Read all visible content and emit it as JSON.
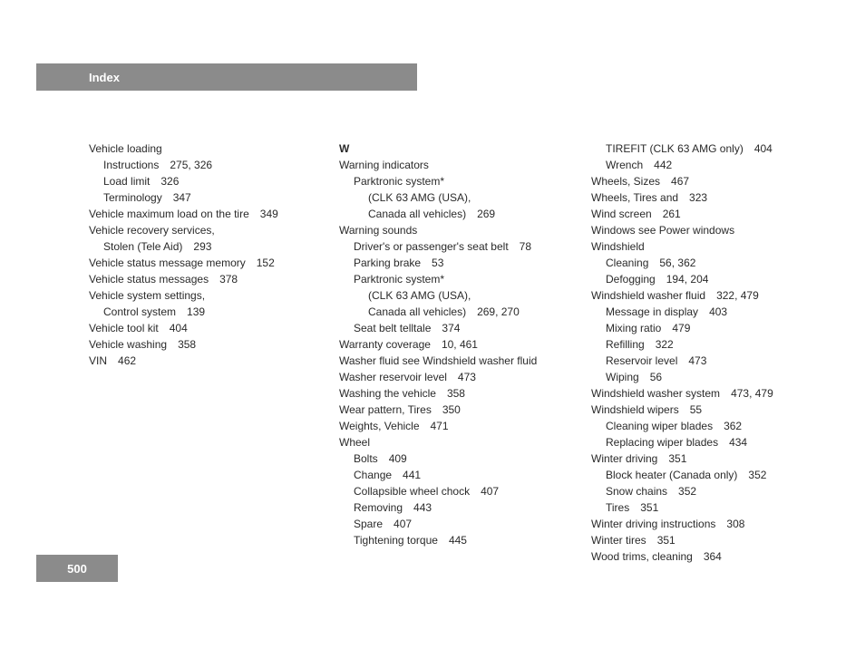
{
  "header": {
    "title": "Index"
  },
  "footer": {
    "page": "500"
  },
  "col1": [
    {
      "t": "Vehicle loading",
      "p": "",
      "ind": 0
    },
    {
      "t": "Instructions",
      "p": "275, 326",
      "ind": 1
    },
    {
      "t": "Load limit",
      "p": "326",
      "ind": 1
    },
    {
      "t": "Terminology",
      "p": "347",
      "ind": 1
    },
    {
      "t": "Vehicle maximum load on the tire",
      "p": "349",
      "ind": 0
    },
    {
      "t": "Vehicle recovery services,",
      "p": "",
      "ind": 0
    },
    {
      "t": "Stolen (Tele Aid)",
      "p": "293",
      "ind": 1
    },
    {
      "t": "Vehicle status message memory",
      "p": "152",
      "ind": 0
    },
    {
      "t": "Vehicle status messages",
      "p": "378",
      "ind": 0
    },
    {
      "t": "Vehicle system settings,",
      "p": "",
      "ind": 0
    },
    {
      "t": "Control system",
      "p": "139",
      "ind": 1
    },
    {
      "t": "Vehicle tool kit",
      "p": "404",
      "ind": 0
    },
    {
      "t": "Vehicle washing",
      "p": "358",
      "ind": 0
    },
    {
      "t": "VIN",
      "p": "462",
      "ind": 0
    }
  ],
  "col2": [
    {
      "t": "W",
      "p": "",
      "ind": 0,
      "letter": true
    },
    {
      "t": "Warning indicators",
      "p": "",
      "ind": 0
    },
    {
      "t": "Parktronic system*",
      "p": "",
      "ind": 1
    },
    {
      "t": "(CLK 63 AMG (USA),",
      "p": "",
      "ind": 2
    },
    {
      "t": "Canada all vehicles)",
      "p": "269",
      "ind": 2
    },
    {
      "t": "Warning sounds",
      "p": "",
      "ind": 0
    },
    {
      "t": "Driver's or passenger's seat belt",
      "p": "78",
      "ind": 1
    },
    {
      "t": "Parking brake",
      "p": "53",
      "ind": 1
    },
    {
      "t": "Parktronic system*",
      "p": "",
      "ind": 1
    },
    {
      "t": "(CLK 63 AMG (USA),",
      "p": "",
      "ind": 2
    },
    {
      "t": "Canada all vehicles)",
      "p": "269, 270",
      "ind": 2
    },
    {
      "t": "Seat belt telltale",
      "p": "374",
      "ind": 1
    },
    {
      "t": "Warranty coverage",
      "p": "10, 461",
      "ind": 0
    },
    {
      "t": "Washer fluid see Windshield washer fluid",
      "p": "",
      "ind": 0
    },
    {
      "t": "Washer reservoir level",
      "p": "473",
      "ind": 0
    },
    {
      "t": "Washing the vehicle",
      "p": "358",
      "ind": 0
    },
    {
      "t": "Wear pattern, Tires",
      "p": "350",
      "ind": 0
    },
    {
      "t": "Weights, Vehicle",
      "p": "471",
      "ind": 0
    },
    {
      "t": "Wheel",
      "p": "",
      "ind": 0
    },
    {
      "t": "Bolts",
      "p": "409",
      "ind": 1
    },
    {
      "t": "Change",
      "p": "441",
      "ind": 1
    },
    {
      "t": "Collapsible wheel chock",
      "p": "407",
      "ind": 1
    },
    {
      "t": "Removing",
      "p": "443",
      "ind": 1
    },
    {
      "t": "Spare",
      "p": "407",
      "ind": 1
    },
    {
      "t": "Tightening torque",
      "p": "445",
      "ind": 1
    }
  ],
  "col3": [
    {
      "t": "TIREFIT (CLK 63 AMG only)",
      "p": "404",
      "ind": 1
    },
    {
      "t": "Wrench",
      "p": "442",
      "ind": 1
    },
    {
      "t": "Wheels, Sizes",
      "p": "467",
      "ind": 0
    },
    {
      "t": "Wheels, Tires and",
      "p": "323",
      "ind": 0
    },
    {
      "t": "Wind screen",
      "p": "261",
      "ind": 0
    },
    {
      "t": "Windows see Power windows",
      "p": "",
      "ind": 0
    },
    {
      "t": "Windshield",
      "p": "",
      "ind": 0
    },
    {
      "t": "Cleaning",
      "p": "56, 362",
      "ind": 1
    },
    {
      "t": "Defogging",
      "p": "194, 204",
      "ind": 1
    },
    {
      "t": "Windshield washer fluid",
      "p": "322, 479",
      "ind": 0
    },
    {
      "t": "Message in display",
      "p": "403",
      "ind": 1
    },
    {
      "t": "Mixing ratio",
      "p": "479",
      "ind": 1
    },
    {
      "t": "Refilling",
      "p": "322",
      "ind": 1
    },
    {
      "t": "Reservoir level",
      "p": "473",
      "ind": 1
    },
    {
      "t": "Wiping",
      "p": "56",
      "ind": 1
    },
    {
      "t": "Windshield washer system",
      "p": "473, 479",
      "ind": 0
    },
    {
      "t": "Windshield wipers",
      "p": "55",
      "ind": 0
    },
    {
      "t": "Cleaning wiper blades",
      "p": "362",
      "ind": 1
    },
    {
      "t": "Replacing wiper blades",
      "p": "434",
      "ind": 1
    },
    {
      "t": "Winter driving",
      "p": "351",
      "ind": 0
    },
    {
      "t": "Block heater (Canada only)",
      "p": "352",
      "ind": 1
    },
    {
      "t": "Snow chains",
      "p": "352",
      "ind": 1
    },
    {
      "t": "Tires",
      "p": "351",
      "ind": 1
    },
    {
      "t": "Winter driving instructions",
      "p": "308",
      "ind": 0
    },
    {
      "t": "Winter tires",
      "p": "351",
      "ind": 0
    },
    {
      "t": "Wood trims, cleaning",
      "p": "364",
      "ind": 0
    }
  ]
}
